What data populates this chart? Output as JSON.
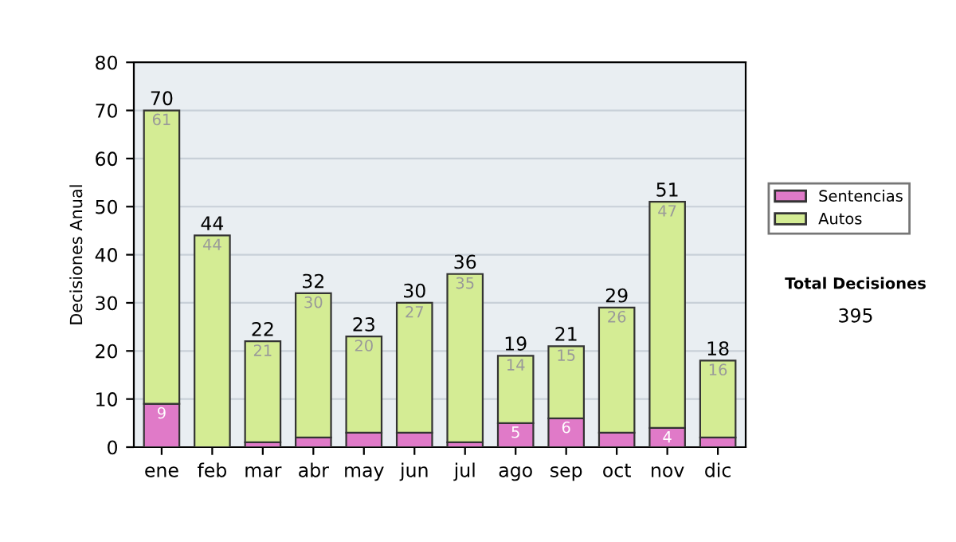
{
  "chart_data": {
    "type": "bar",
    "stacked": true,
    "ylabel": "Decisiones Anual",
    "categories": [
      "ene",
      "feb",
      "mar",
      "abr",
      "may",
      "jun",
      "jul",
      "ago",
      "sep",
      "oct",
      "nov",
      "dic"
    ],
    "series": [
      {
        "name": "Sentencias",
        "color": "#e07ac8",
        "values": [
          9,
          0,
          1,
          2,
          3,
          3,
          1,
          5,
          6,
          3,
          4,
          2
        ],
        "value_labels": [
          "9",
          null,
          null,
          null,
          null,
          null,
          null,
          "5",
          "6",
          null,
          "4",
          null
        ]
      },
      {
        "name": "Autos",
        "color": "#d4ec94",
        "values": [
          61,
          44,
          21,
          30,
          20,
          27,
          35,
          14,
          15,
          26,
          47,
          16
        ],
        "value_labels": [
          "61",
          "44",
          "21",
          "30",
          "20",
          "27",
          "35",
          "14",
          "15",
          "26",
          "47",
          "16"
        ]
      }
    ],
    "totals": [
      "70",
      "44",
      "22",
      "32",
      "23",
      "30",
      "36",
      "19",
      "21",
      "29",
      "51",
      "18"
    ],
    "ylim": [
      0,
      80
    ],
    "yticks": [
      0,
      10,
      20,
      30,
      40,
      50,
      60,
      70,
      80
    ],
    "grid": "y",
    "legend": "right",
    "annotations": [
      "Total Decisiones",
      "395"
    ]
  }
}
